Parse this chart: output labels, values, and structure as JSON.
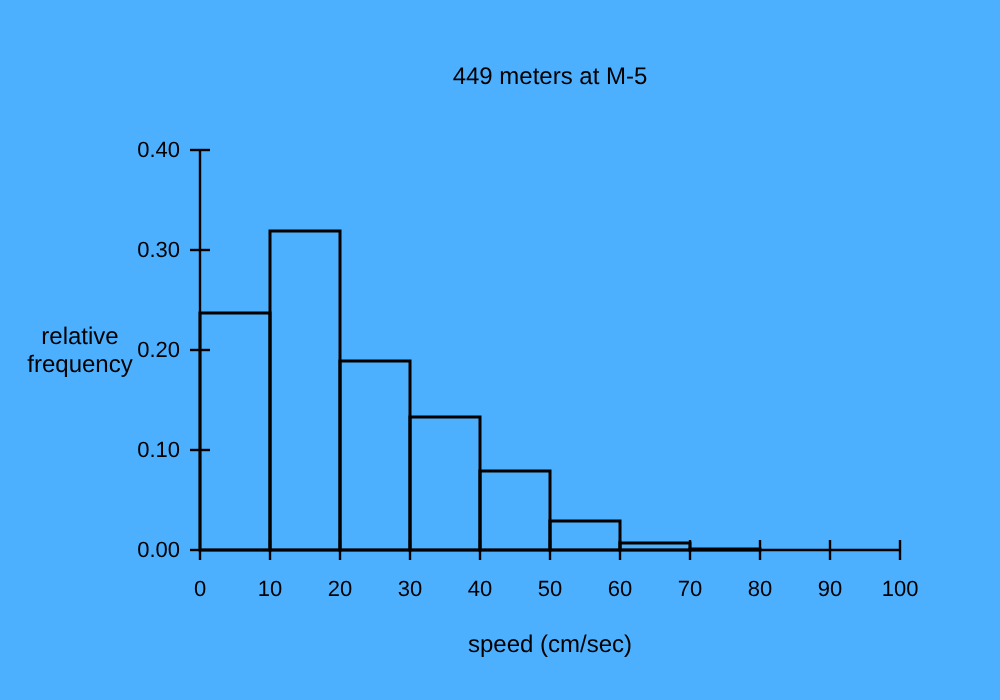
{
  "chart_data": {
    "type": "histogram",
    "title": "449 meters at M-5",
    "xlabel": "speed (cm/sec)",
    "ylabel": "relative\nfrequency",
    "bins": [
      0,
      10,
      20,
      30,
      40,
      50,
      60,
      70,
      80
    ],
    "values": [
      0.237,
      0.319,
      0.189,
      0.133,
      0.079,
      0.029,
      0.007,
      0.001
    ],
    "color": "#000000",
    "xlim": [
      0,
      100
    ],
    "xticks": [
      0,
      10,
      20,
      30,
      40,
      50,
      60,
      70,
      80,
      90,
      100
    ],
    "ylim": [
      0,
      0.4
    ],
    "yticks": [
      {
        "value": 0,
        "label": "0.00"
      },
      {
        "value": 0.1,
        "label": "0.10"
      },
      {
        "value": 0.2,
        "label": "0.20"
      },
      {
        "value": 0.3,
        "label": "0.30"
      },
      {
        "value": 0.4,
        "label": "0.40"
      }
    ],
    "grid": false
  }
}
